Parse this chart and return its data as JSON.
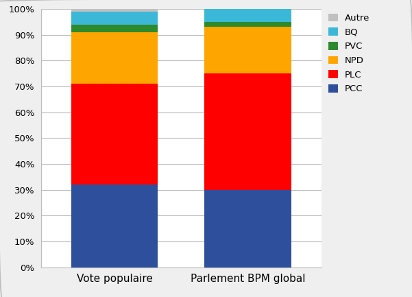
{
  "categories": [
    "Vote populaire",
    "Parlement BPM global"
  ],
  "series": [
    {
      "label": "PCC",
      "values": [
        32,
        30
      ],
      "color": "#2E4F9C"
    },
    {
      "label": "PLC",
      "values": [
        39,
        45
      ],
      "color": "#FF0000"
    },
    {
      "label": "NPD",
      "values": [
        20,
        18
      ],
      "color": "#FFA500"
    },
    {
      "label": "PVC",
      "values": [
        3,
        2
      ],
      "color": "#2D8A2D"
    },
    {
      "label": "BQ",
      "values": [
        5,
        5
      ],
      "color": "#3BB8D8"
    },
    {
      "label": "Autre",
      "values": [
        1,
        0
      ],
      "color": "#C0C0C0"
    }
  ],
  "ylim": [
    0,
    100
  ],
  "yticks": [
    0,
    10,
    20,
    30,
    40,
    50,
    60,
    70,
    80,
    90,
    100
  ],
  "ytick_labels": [
    "0%",
    "10%",
    "20%",
    "30%",
    "40%",
    "50%",
    "60%",
    "70%",
    "80%",
    "90%",
    "100%"
  ],
  "bar_width": 0.65,
  "background_color": "#FFFFFF",
  "grid_color": "#BBBBBB",
  "legend_fontsize": 9.5,
  "tick_fontsize": 9.5,
  "xlabel_fontsize": 11,
  "fig_background": "#EFEFEF",
  "border_color": "#BBBBBB"
}
